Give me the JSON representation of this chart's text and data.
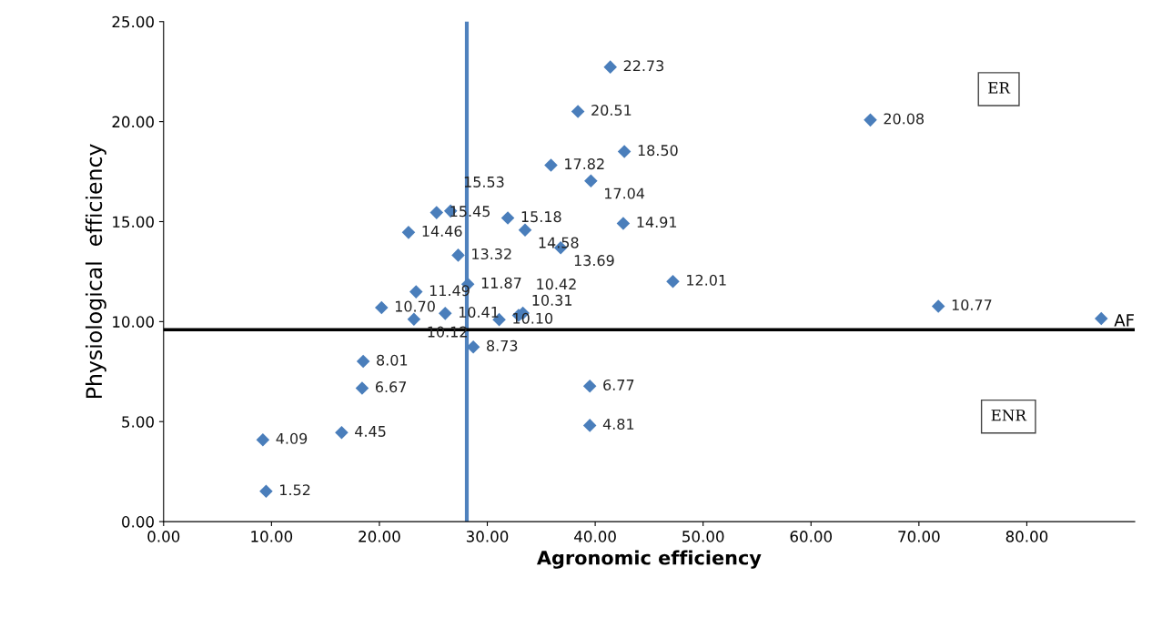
{
  "chart_data": {
    "type": "scatter",
    "xlabel": "Agronomic efficiency",
    "ylabel": "Physiological  efficiency",
    "x": [
      41.4,
      38.4,
      65.5,
      42.7,
      35.9,
      39.6,
      25.3,
      26.6,
      31.9,
      33.5,
      42.6,
      22.7,
      36.8,
      27.3,
      47.2,
      28.2,
      23.4,
      20.2,
      71.8,
      86.9,
      23.2,
      26.1,
      31.1,
      32.9,
      33.3,
      28.7,
      18.5,
      18.4,
      39.5,
      39.5,
      16.5,
      9.2,
      9.5
    ],
    "values": [
      22.73,
      20.51,
      20.08,
      18.5,
      17.82,
      17.04,
      15.45,
      15.53,
      15.18,
      14.58,
      14.91,
      14.46,
      13.69,
      13.32,
      12.01,
      11.87,
      11.49,
      10.7,
      10.77,
      10.15,
      10.12,
      10.41,
      10.1,
      10.31,
      10.42,
      8.73,
      8.01,
      6.67,
      6.77,
      4.81,
      4.45,
      4.09,
      1.52
    ],
    "value_labels": [
      "22.73",
      "20.51",
      "20.08",
      "18.50",
      "17.82",
      "17.04",
      "15.45",
      "15.53",
      "15.18",
      "14.58",
      "14.91",
      "14.46",
      "13.69",
      "13.32",
      "12.01",
      "11.87",
      "11.49",
      "10.70",
      "10.77",
      null,
      "10.12",
      "10.41",
      "10.10",
      "10.31",
      "10.42",
      "8.73",
      "8.01",
      "6.67",
      "6.77",
      "4.81",
      "4.45",
      "4.09",
      "1.52"
    ],
    "color": "#4a7ebb",
    "marker": "diamond",
    "xlim": [
      0,
      90
    ],
    "xticks": [
      {
        "value": 0,
        "label": "0.00"
      },
      {
        "value": 10,
        "label": "10.00"
      },
      {
        "value": 20,
        "label": "20.00"
      },
      {
        "value": 30,
        "label": "30.00"
      },
      {
        "value": 40,
        "label": "40.00"
      },
      {
        "value": 50,
        "label": "50.00"
      },
      {
        "value": 60,
        "label": "60.00"
      },
      {
        "value": 70,
        "label": "70.00"
      },
      {
        "value": 80,
        "label": "80.00"
      }
    ],
    "ylim": [
      0,
      25
    ],
    "yticks": [
      {
        "value": 0,
        "label": "0.00"
      },
      {
        "value": 5,
        "label": "5.00"
      },
      {
        "value": 10,
        "label": "10.00"
      },
      {
        "value": 15,
        "label": "15.00"
      },
      {
        "value": 20,
        "label": "20.00"
      },
      {
        "value": 25,
        "label": "25.00"
      }
    ],
    "ref_lines": [
      {
        "axis": "x",
        "value": 28.1,
        "color": "#4f81bd"
      },
      {
        "axis": "y",
        "value": 9.6,
        "color": "#000000",
        "label": "AF"
      }
    ],
    "annotations": [
      "ER",
      "ENR"
    ],
    "grid": false,
    "legend": false
  }
}
